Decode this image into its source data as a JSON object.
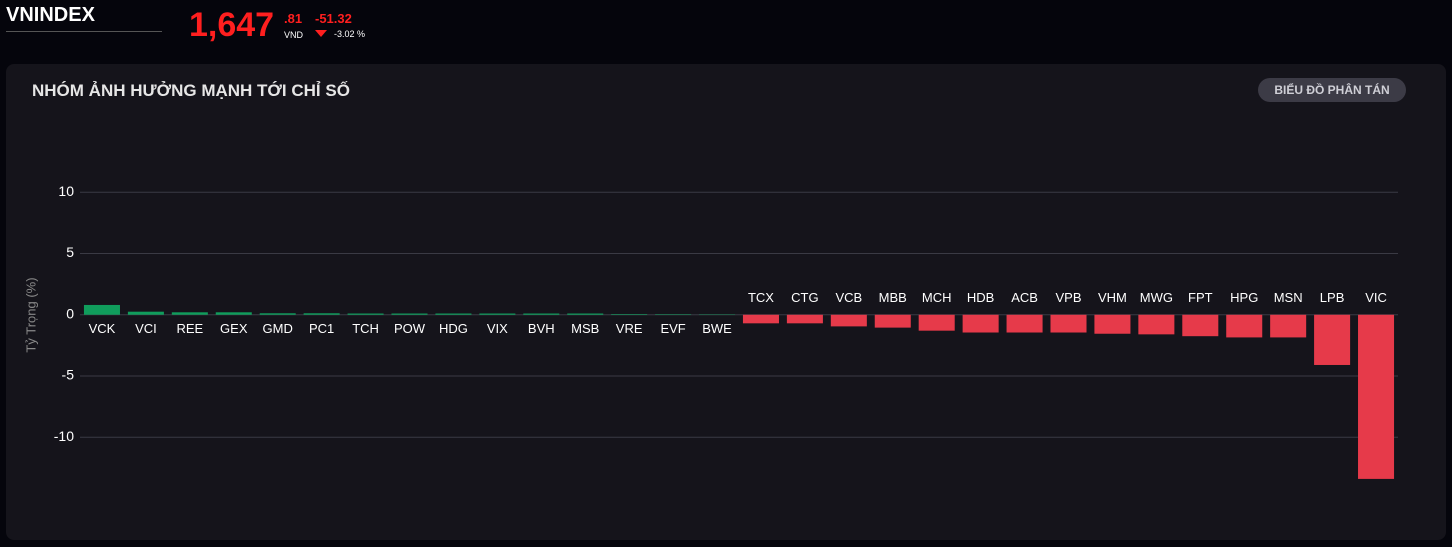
{
  "header": {
    "index_name": "VNINDEX",
    "price": "1,647",
    "price_decimal": ".81",
    "currency": "VND",
    "change": "-51.32",
    "change_percent": "-3.02 %"
  },
  "panel": {
    "button": "BIỂU ĐỒ PHÂN TÁN"
  },
  "chart_data": {
    "type": "bar",
    "title": "NHÓM ẢNH HƯỞNG MẠNH TỚI CHỈ SỐ",
    "y_label": "Tỷ Trọng (%)",
    "categories": [
      "VCK",
      "VCI",
      "REE",
      "GEX",
      "GMD",
      "PC1",
      "TCH",
      "POW",
      "HDG",
      "VIX",
      "BVH",
      "MSB",
      "VRE",
      "EVF",
      "BWE",
      "TCX",
      "CTG",
      "VCB",
      "MBB",
      "MCH",
      "HDB",
      "ACB",
      "VPB",
      "VHM",
      "MWG",
      "FPT",
      "HPG",
      "MSN",
      "LPB",
      "VIC"
    ],
    "values": [
      0.8,
      0.25,
      0.2,
      0.2,
      0.12,
      0.12,
      0.1,
      0.1,
      0.1,
      0.1,
      0.1,
      0.1,
      0.05,
      0.04,
      0.03,
      -0.7,
      -0.7,
      -0.95,
      -1.05,
      -1.3,
      -1.45,
      -1.45,
      -1.45,
      -1.55,
      -1.6,
      -1.75,
      -1.85,
      -1.85,
      -4.1,
      -13.4
    ],
    "positive_color": "#109d5c",
    "negative_color": "#e63a4a",
    "ylim": [
      -14,
      11
    ],
    "yticks": [
      -10,
      -5,
      0,
      5,
      10
    ],
    "grid": true
  }
}
